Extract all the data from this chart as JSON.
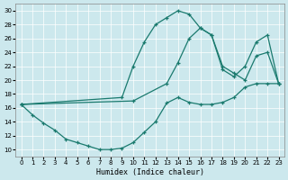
{
  "xlabel": "Humidex (Indice chaleur)",
  "xlim": [
    -0.5,
    23.5
  ],
  "ylim": [
    9,
    31
  ],
  "yticks": [
    10,
    12,
    14,
    16,
    18,
    20,
    22,
    24,
    26,
    28,
    30
  ],
  "xticks": [
    0,
    1,
    2,
    3,
    4,
    5,
    6,
    7,
    8,
    9,
    10,
    11,
    12,
    13,
    14,
    15,
    16,
    17,
    18,
    19,
    20,
    21,
    22,
    23
  ],
  "bg_color": "#cce8ed",
  "line_color": "#1a7a6e",
  "line1_x": [
    0,
    1,
    2,
    3,
    4,
    5,
    6,
    7,
    8,
    9,
    10,
    11,
    12,
    13,
    14,
    15,
    16,
    17,
    18,
    19,
    20,
    21,
    22,
    23
  ],
  "line1_y": [
    16.5,
    15.0,
    13.8,
    12.8,
    11.5,
    11.0,
    10.5,
    10.0,
    10.0,
    10.2,
    11.0,
    12.5,
    14.0,
    16.7,
    17.5,
    16.8,
    16.5,
    16.5,
    16.8,
    17.5,
    19.0,
    19.5,
    19.5,
    19.5
  ],
  "line2_x": [
    0,
    9,
    10,
    11,
    12,
    13,
    14,
    15,
    16,
    17,
    18,
    19,
    20,
    21,
    22,
    23
  ],
  "line2_y": [
    16.5,
    17.5,
    22.0,
    25.5,
    28.0,
    29.0,
    30.0,
    29.5,
    27.5,
    26.5,
    22.0,
    21.0,
    20.0,
    23.5,
    24.0,
    19.5
  ],
  "line3_x": [
    0,
    10,
    13,
    14,
    15,
    16,
    17,
    18,
    19,
    20,
    21,
    22,
    23
  ],
  "line3_y": [
    16.5,
    17.0,
    19.5,
    22.5,
    26.0,
    27.5,
    26.5,
    21.5,
    20.5,
    22.0,
    25.5,
    26.5,
    19.5
  ]
}
